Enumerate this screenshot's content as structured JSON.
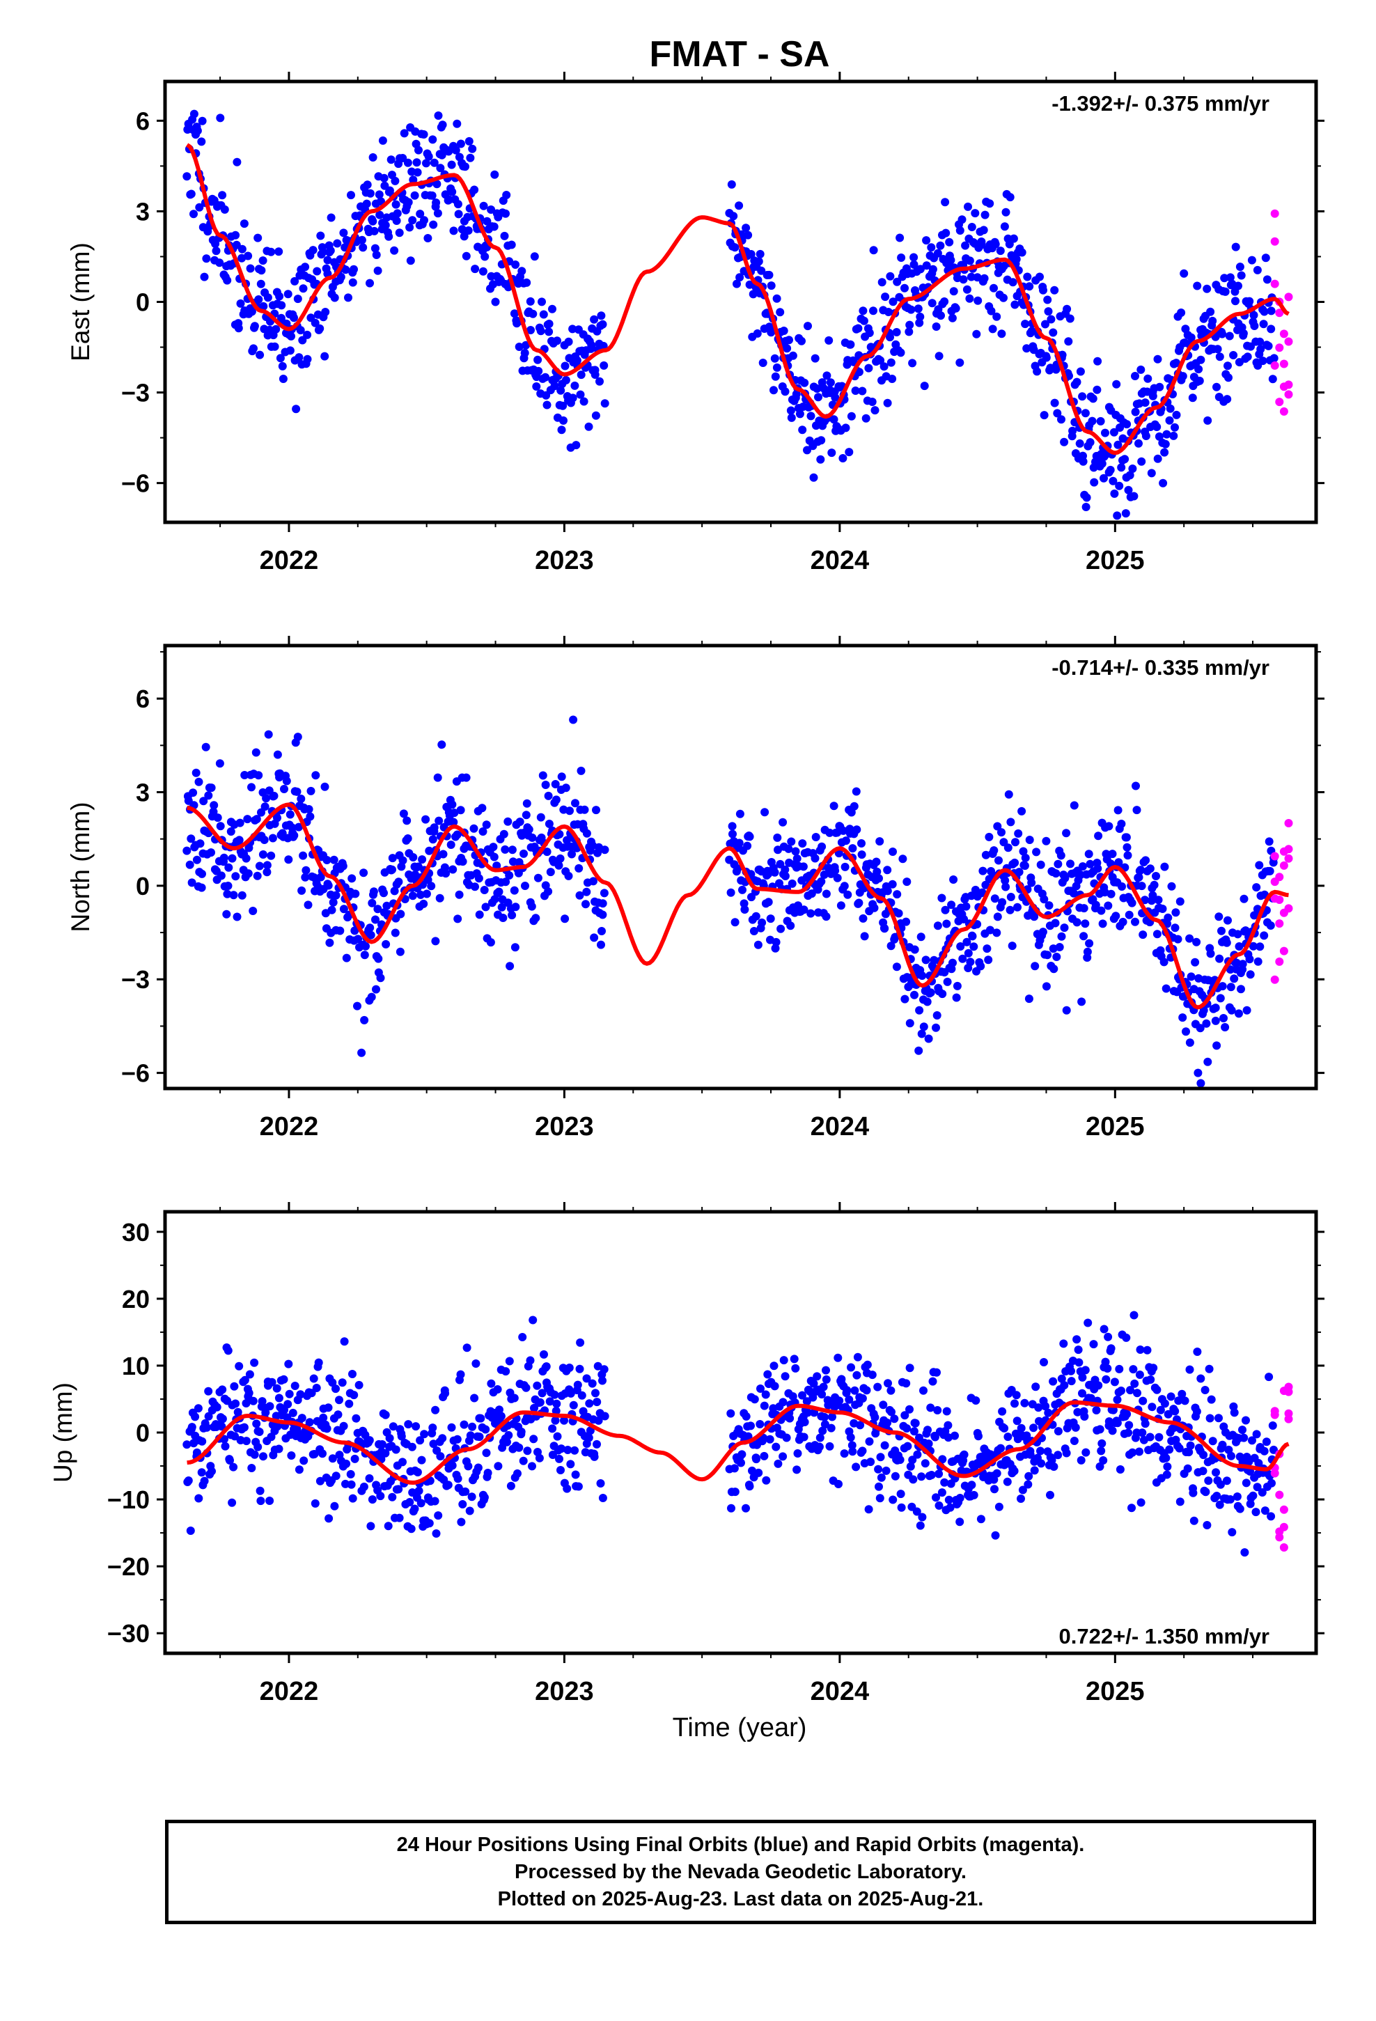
{
  "title": "FMAT - SA",
  "xlabel": "Time (year)",
  "colors": {
    "final": "#0000ff",
    "rapid": "#ff00ff",
    "model": "#ff0000"
  },
  "footer": {
    "line1": "24 Hour Positions Using Final Orbits (blue) and Rapid Orbits (magenta).",
    "line2": "Processed by the Nevada Geodetic Laboratory.",
    "line3": "Plotted on 2025-Aug-23. Last data on 2025-Aug-21."
  },
  "chart_data": [
    {
      "type": "scatter",
      "component": "east",
      "ylabel": "East (mm)",
      "rate_label": "-1.392+/- 0.375 mm/yr",
      "xlim": [
        2021.55,
        2025.73
      ],
      "ylim": [
        -7.3,
        7.3
      ],
      "xticks": [
        2022,
        2023,
        2024,
        2025
      ],
      "yticks": [
        -6,
        -3,
        0,
        3,
        6
      ],
      "model_curve": {
        "x": [
          2021.63,
          2021.75,
          2021.9,
          2022.0,
          2022.15,
          2022.3,
          2022.45,
          2022.6,
          2022.75,
          2022.9,
          2023.0,
          2023.15,
          2023.3,
          2023.5,
          2023.6,
          2023.7,
          2023.85,
          2023.95,
          2024.1,
          2024.25,
          2024.45,
          2024.6,
          2024.75,
          2024.9,
          2025.0,
          2025.15,
          2025.3,
          2025.45,
          2025.58,
          2025.63
        ],
        "y": [
          5.2,
          2.2,
          -0.3,
          -0.9,
          0.8,
          3.0,
          3.9,
          4.2,
          1.8,
          -1.6,
          -2.4,
          -1.6,
          1.0,
          2.8,
          2.6,
          0.6,
          -2.9,
          -3.8,
          -1.8,
          0.1,
          1.1,
          1.4,
          -1.2,
          -4.3,
          -5.0,
          -3.5,
          -1.3,
          -0.4,
          0.1,
          -0.4
        ]
      },
      "final_segments": [
        [
          2021.63,
          2023.15
        ],
        [
          2023.6,
          2025.58
        ]
      ],
      "rapid_range": [
        2025.58,
        2025.63
      ],
      "scatter_seed": 11
    },
    {
      "type": "scatter",
      "component": "north",
      "ylabel": "North (mm)",
      "rate_label": "-0.714+/- 0.335 mm/yr",
      "xlim": [
        2021.55,
        2025.73
      ],
      "ylim": [
        -6.5,
        7.7
      ],
      "xticks": [
        2022,
        2023,
        2024,
        2025
      ],
      "yticks": [
        -6,
        -3,
        0,
        3,
        6
      ],
      "model_curve": {
        "x": [
          2021.63,
          2021.8,
          2022.0,
          2022.15,
          2022.3,
          2022.45,
          2022.6,
          2022.75,
          2022.85,
          2023.0,
          2023.15,
          2023.3,
          2023.45,
          2023.6,
          2023.7,
          2023.85,
          2024.0,
          2024.15,
          2024.3,
          2024.45,
          2024.6,
          2024.75,
          2024.9,
          2025.0,
          2025.15,
          2025.3,
          2025.45,
          2025.58,
          2025.63
        ],
        "y": [
          2.5,
          1.2,
          2.6,
          0.3,
          -1.8,
          0.0,
          1.9,
          0.5,
          0.6,
          1.9,
          0.1,
          -2.5,
          -0.3,
          1.2,
          -0.1,
          -0.2,
          1.2,
          -0.4,
          -3.2,
          -1.4,
          0.5,
          -1.0,
          -0.3,
          0.6,
          -1.1,
          -3.9,
          -2.2,
          -0.2,
          -0.3
        ]
      },
      "final_segments": [
        [
          2021.63,
          2023.15
        ],
        [
          2023.6,
          2025.58
        ]
      ],
      "rapid_range": [
        2025.58,
        2025.63
      ],
      "scatter_seed": 23
    },
    {
      "type": "scatter",
      "component": "up",
      "ylabel": "Up (mm)",
      "rate_label": "0.722+/- 1.350 mm/yr",
      "xlim": [
        2021.55,
        2025.73
      ],
      "ylim": [
        -33,
        33
      ],
      "xticks": [
        2022,
        2023,
        2024,
        2025
      ],
      "yticks": [
        -30,
        -20,
        -10,
        0,
        10,
        20,
        30
      ],
      "model_curve": {
        "x": [
          2021.63,
          2021.85,
          2022.0,
          2022.2,
          2022.45,
          2022.65,
          2022.85,
          2023.0,
          2023.2,
          2023.35,
          2023.5,
          2023.65,
          2023.85,
          2024.0,
          2024.2,
          2024.45,
          2024.65,
          2024.85,
          2025.0,
          2025.2,
          2025.45,
          2025.55,
          2025.63
        ],
        "y": [
          -4.5,
          2.5,
          1.5,
          -1.5,
          -7.5,
          -2.5,
          3.0,
          2.5,
          -0.5,
          -3.0,
          -7.0,
          -1.5,
          4.0,
          3.0,
          0.0,
          -6.5,
          -2.5,
          4.5,
          4.0,
          1.5,
          -5.0,
          -5.5,
          -1.7
        ]
      },
      "final_segments": [
        [
          2021.63,
          2023.15
        ],
        [
          2023.6,
          2025.58
        ]
      ],
      "rapid_range": [
        2025.58,
        2025.63
      ],
      "scatter_seed": 37
    }
  ]
}
